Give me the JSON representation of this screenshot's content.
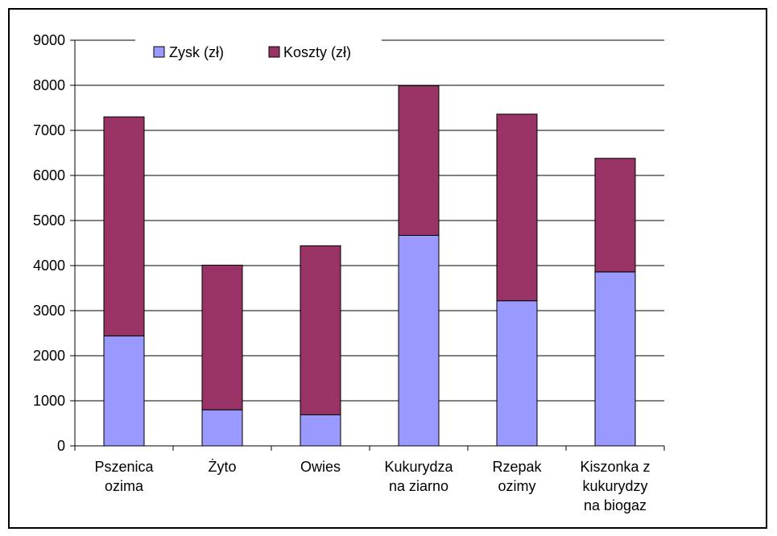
{
  "chart_data": {
    "type": "bar",
    "stacked": true,
    "categories": [
      [
        "Pszenica",
        "ozima"
      ],
      [
        "Żyto"
      ],
      [
        "Owies"
      ],
      [
        "Kukurydza",
        "na ziarno"
      ],
      [
        "Rzepak",
        "ozimy"
      ],
      [
        "Kiszonka z",
        "kukurydzy",
        "na biogaz"
      ]
    ],
    "series": [
      {
        "name": "Zysk (zł)",
        "color": "#9999ff",
        "values": [
          2440,
          800,
          690,
          4670,
          3220,
          3860
        ]
      },
      {
        "name": "Koszty (zł)",
        "color": "#993366",
        "values": [
          4860,
          3210,
          3750,
          3320,
          4140,
          2520
        ]
      }
    ],
    "ylim": [
      0,
      9000
    ],
    "yticks": [
      "0",
      "1000",
      "2000",
      "3000",
      "4000",
      "5000",
      "6000",
      "7000",
      "8000",
      "9000"
    ],
    "grid": true,
    "legend": "top"
  }
}
